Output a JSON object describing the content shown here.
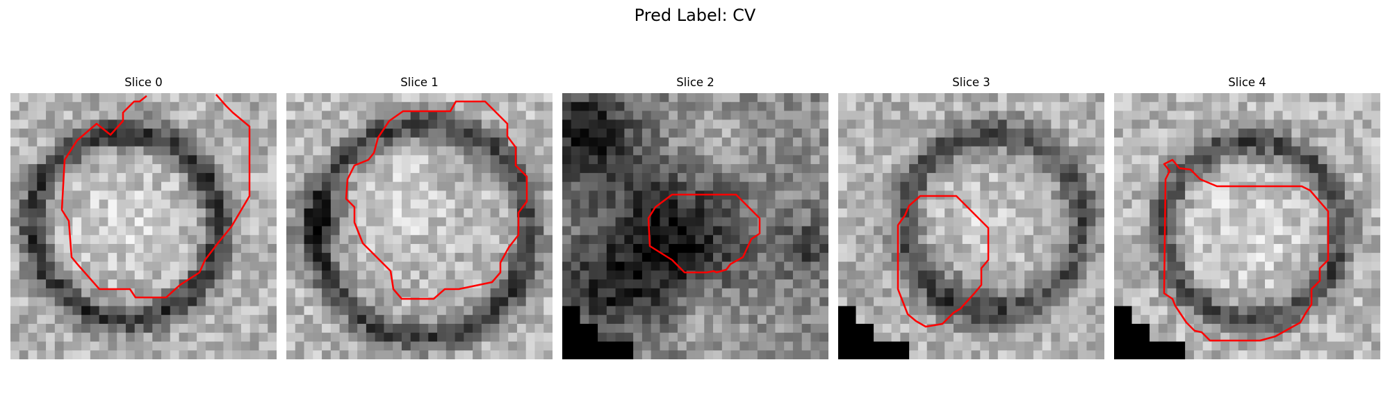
{
  "figure": {
    "title": "Pred Label: CV",
    "contour_color": "#ff0000",
    "panels": [
      {
        "title": "Slice 0"
      },
      {
        "title": "Slice 1"
      },
      {
        "title": "Slice 2"
      },
      {
        "title": "Slice 3"
      },
      {
        "title": "Slice 4"
      }
    ]
  }
}
